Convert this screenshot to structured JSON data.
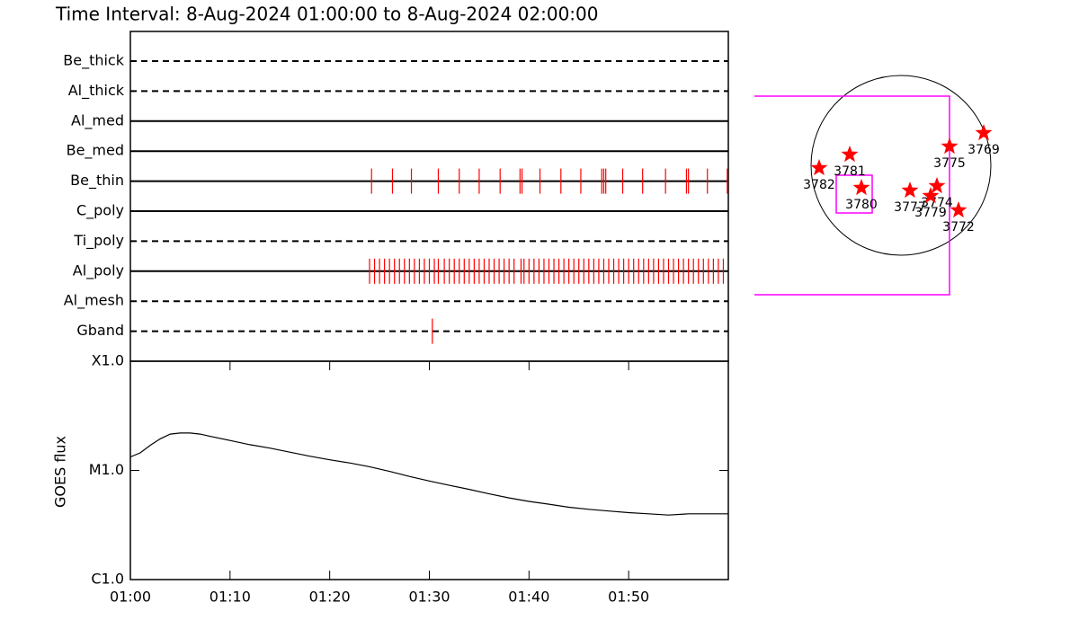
{
  "chart_data": [
    {
      "type": "timeline",
      "title": "Time Interval:  8-Aug-2024 01:00:00 to  8-Aug-2024 02:00:00",
      "xlim": [
        0,
        60
      ],
      "color": "#ff0000",
      "rows": [
        {
          "name": "Be_thick",
          "line": "dashed",
          "times": []
        },
        {
          "name": "Al_thick",
          "line": "dashed",
          "times": []
        },
        {
          "name": "Al_med",
          "line": "solid",
          "times": []
        },
        {
          "name": "Be_med",
          "line": "solid",
          "times": []
        },
        {
          "name": "Be_thin",
          "line": "solid",
          "times": [
            24.2,
            26.3,
            28.2,
            30.9,
            33.0,
            35.0,
            37.1,
            39.1,
            39.3,
            41.1,
            43.2,
            45.2,
            47.3,
            47.5,
            47.7,
            49.4,
            51.4,
            53.7,
            55.8,
            56.0,
            57.9,
            59.9
          ]
        },
        {
          "name": "C_poly",
          "line": "solid",
          "times": []
        },
        {
          "name": "Ti_poly",
          "line": "dashed",
          "times": []
        },
        {
          "name": "Al_poly",
          "line": "solid",
          "times": [
            24.0,
            24.5,
            25.0,
            25.5,
            26.0,
            26.5,
            27.0,
            27.5,
            28.0,
            28.5,
            29.0,
            29.5,
            30.0,
            30.5,
            30.9,
            31.5,
            32.0,
            32.5,
            33.0,
            33.5,
            34.0,
            34.5,
            35.0,
            35.5,
            36.0,
            36.5,
            37.0,
            37.5,
            38.0,
            38.5,
            39.2,
            39.5,
            40.0,
            40.5,
            41.0,
            41.5,
            42.0,
            42.5,
            43.0,
            43.5,
            44.0,
            44.5,
            45.0,
            45.5,
            46.0,
            46.5,
            47.0,
            47.5,
            48.0,
            48.5,
            49.0,
            49.5,
            50.0,
            50.5,
            51.0,
            51.5,
            52.0,
            52.5,
            53.0,
            53.5,
            54.0,
            54.5,
            55.0,
            55.5,
            56.0,
            56.5,
            57.0,
            57.5,
            58.0,
            58.5,
            59.0,
            59.5
          ]
        },
        {
          "name": "Al_mesh",
          "line": "dashed",
          "times": []
        },
        {
          "name": "Gband",
          "line": "dashed",
          "times": [
            30.3
          ]
        }
      ]
    },
    {
      "type": "line",
      "ylabel": "GOES flux",
      "ylog": true,
      "color": "#000000",
      "xlim": [
        0,
        60
      ],
      "ylim": [
        1e-06,
        0.0001
      ],
      "xticks": [
        {
          "value": 0,
          "label": "01:00"
        },
        {
          "value": 10,
          "label": "01:10"
        },
        {
          "value": 20,
          "label": "01:20"
        },
        {
          "value": 30,
          "label": "01:30"
        },
        {
          "value": 40,
          "label": "01:40"
        },
        {
          "value": 50,
          "label": "01:50"
        }
      ],
      "yticks": [
        {
          "value": 0.0001,
          "label": "X1.0"
        },
        {
          "value": 1e-05,
          "label": "M1.0"
        },
        {
          "value": 1e-06,
          "label": "C1.0"
        }
      ],
      "x": [
        0,
        1,
        2,
        3,
        4,
        5,
        6,
        7,
        8,
        10,
        12,
        14,
        16,
        18,
        20,
        22,
        24,
        26,
        28,
        30,
        32,
        34,
        36,
        38,
        40,
        42,
        44,
        46,
        48,
        50,
        52,
        54,
        56,
        58,
        60
      ],
      "values": [
        1.33e-05,
        1.45e-05,
        1.7e-05,
        1.95e-05,
        2.15e-05,
        2.2e-05,
        2.2e-05,
        2.15e-05,
        2.05e-05,
        1.88e-05,
        1.72e-05,
        1.6e-05,
        1.47e-05,
        1.35e-05,
        1.25e-05,
        1.17e-05,
        1.08e-05,
        9.8e-06,
        8.8e-06,
        8e-06,
        7.3e-06,
        6.7e-06,
        6.1e-06,
        5.6e-06,
        5.2e-06,
        4.9e-06,
        4.6e-06,
        4.4e-06,
        4.25e-06,
        4.1e-06,
        4e-06,
        3.9e-06,
        4e-06,
        4e-06,
        4e-06
      ]
    },
    {
      "type": "map",
      "color": "#ff0000",
      "fov_color": "#ff00ff",
      "labels": [
        "3782",
        "3781",
        "3780",
        "3777",
        "3774",
        "3779",
        "3772",
        "3775",
        "3769"
      ],
      "x": [
        -0.91,
        -0.57,
        -0.44,
        0.1,
        0.4,
        0.33,
        0.64,
        0.54,
        0.92
      ],
      "y": [
        -0.03,
        0.12,
        -0.25,
        -0.28,
        -0.23,
        -0.34,
        -0.5,
        0.21,
        0.36
      ],
      "fov": [
        [
          -1.64,
          0.77,
          0.54,
          -1.44
        ],
        [
          -0.72,
          -0.11,
          -0.32,
          -0.53
        ]
      ]
    }
  ]
}
